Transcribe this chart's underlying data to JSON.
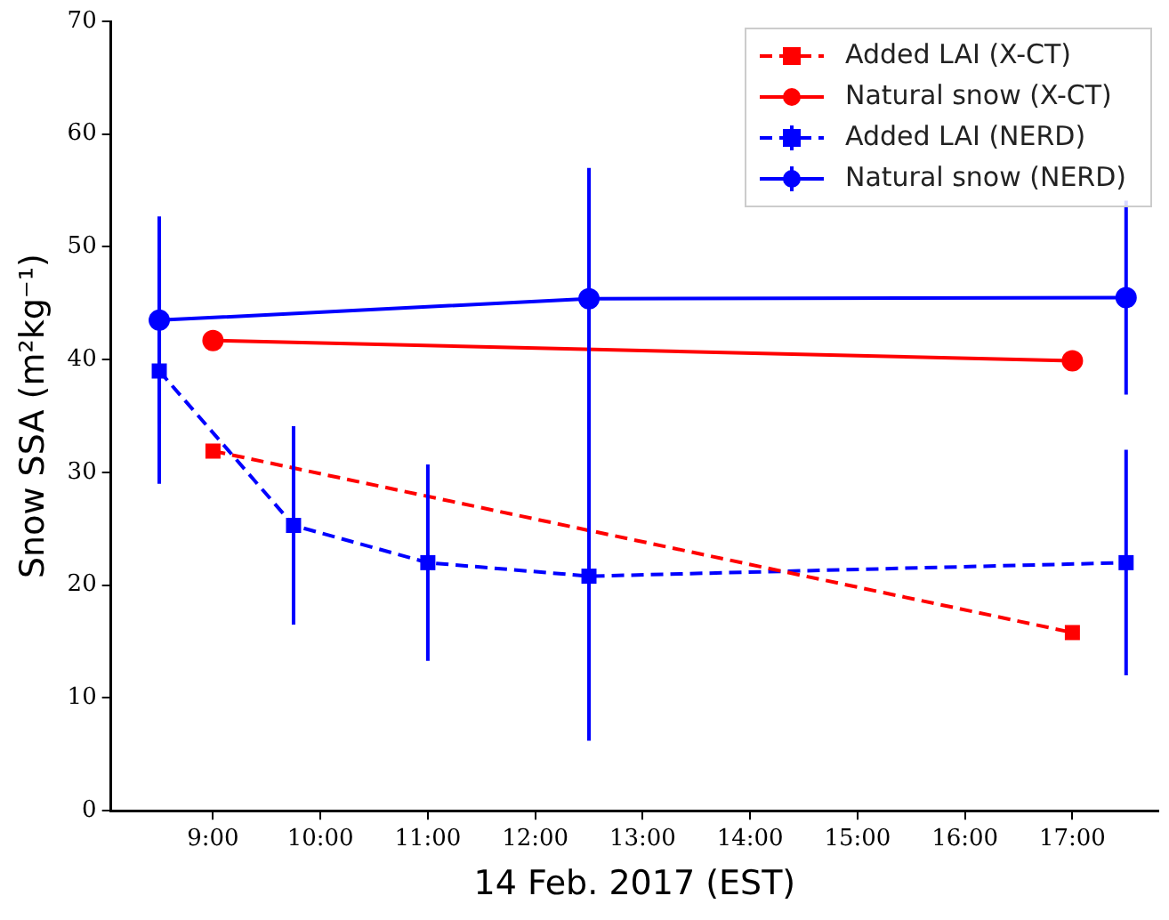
{
  "chart_data": {
    "type": "line",
    "xlabel": "14 Feb. 2017 (EST)",
    "ylabel": "Snow SSA (m²kg⁻¹)",
    "xlim": [
      8.05,
      17.8
    ],
    "xticks": [
      {
        "value": 9,
        "label": "9:00"
      },
      {
        "value": 10,
        "label": "10:00"
      },
      {
        "value": 11,
        "label": "11:00"
      },
      {
        "value": 12,
        "label": "12:00"
      },
      {
        "value": 13,
        "label": "13:00"
      },
      {
        "value": 14,
        "label": "14:00"
      },
      {
        "value": 15,
        "label": "15:00"
      },
      {
        "value": 16,
        "label": "16:00"
      },
      {
        "value": 17,
        "label": "17:00"
      }
    ],
    "ylim": [
      0,
      70
    ],
    "yticks": [
      0,
      10,
      20,
      30,
      40,
      50,
      60,
      70
    ],
    "grid": false,
    "legend": "top right",
    "series": [
      {
        "name": "Added LAI (X-CT)",
        "color": "#ff0000",
        "marker": "square",
        "line_style": "dashed",
        "x": [
          9,
          17
        ],
        "values": [
          31.9,
          15.8
        ]
      },
      {
        "name": "Natural snow (X-CT)",
        "color": "#ff0000",
        "marker": "circle",
        "line_style": "solid",
        "x": [
          9,
          17
        ],
        "values": [
          41.7,
          39.9
        ]
      },
      {
        "name": "Added LAI (NERD)",
        "color": "#0000ff",
        "marker": "square",
        "line_style": "dashed",
        "x": [
          8.5,
          9.75,
          11,
          12.5,
          17.5
        ],
        "values": [
          39,
          25.3,
          22,
          20.8,
          22
        ],
        "errors": [
          10,
          8.8,
          8.7,
          14.6,
          10
        ]
      },
      {
        "name": "Natural snow (NERD)",
        "color": "#0000ff",
        "marker": "circle",
        "line_style": "solid",
        "x": [
          8.5,
          12.5,
          17.5
        ],
        "values": [
          43.5,
          45.4,
          45.5
        ],
        "errors": [
          9.2,
          11.6,
          8.6
        ]
      }
    ]
  }
}
